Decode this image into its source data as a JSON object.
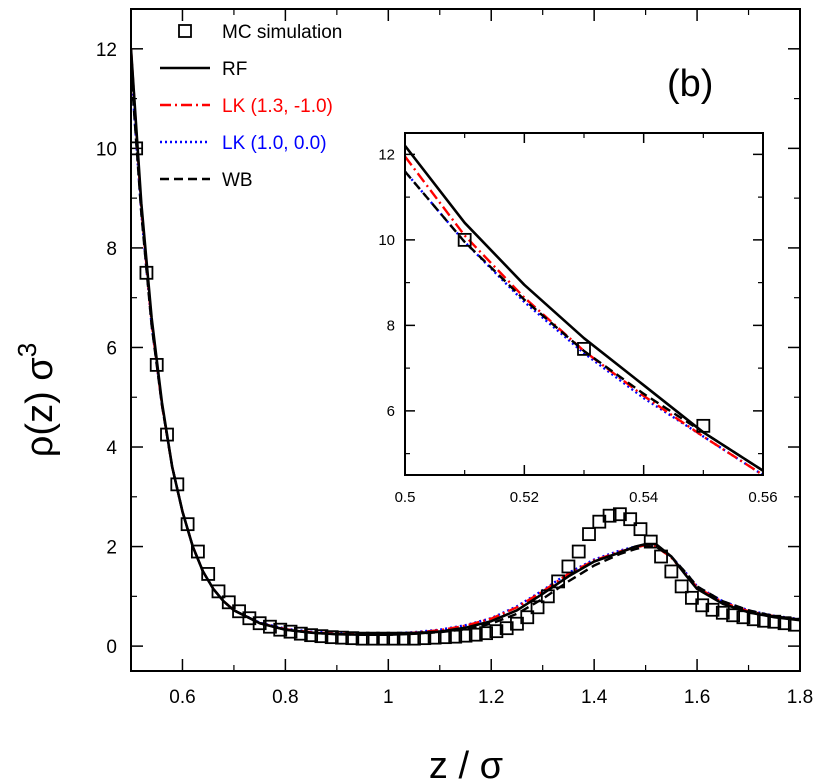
{
  "chart_data": {
    "type": "line",
    "panel_label": "(b)",
    "xlabel": "z / σ",
    "ylabel_base": "ρ(z) σ",
    "ylabel_sup": "3",
    "xlim": [
      0.5,
      1.8
    ],
    "ylim": [
      -0.5,
      12.8
    ],
    "xticks": [
      "0.6",
      "0.8",
      "1",
      "1.2",
      "1.4",
      "1.6",
      "1.8"
    ],
    "xtick_values": [
      0.6,
      0.8,
      1.0,
      1.2,
      1.4,
      1.6,
      1.8
    ],
    "yticks": [
      "0",
      "2",
      "4",
      "6",
      "8",
      "10",
      "12"
    ],
    "ytick_values": [
      0,
      2,
      4,
      6,
      8,
      10,
      12
    ],
    "legend": [
      {
        "key": "mc",
        "label": "MC simulation",
        "color": "#000000",
        "style": "square"
      },
      {
        "key": "rf",
        "label": "RF",
        "color": "#000000",
        "style": "solid"
      },
      {
        "key": "lk1",
        "label": "LK (1.3, -1.0)",
        "color": "#ff0000",
        "style": "dashdot"
      },
      {
        "key": "lk2",
        "label": "LK (1.0, 0.0)",
        "color": "#0000ff",
        "style": "dotted"
      },
      {
        "key": "wb",
        "label": "WB",
        "color": "#000000",
        "style": "dashed"
      }
    ],
    "series": [
      {
        "key": "mc",
        "name": "MC simulation",
        "type": "scatter",
        "x": [
          0.51,
          0.53,
          0.55,
          0.57,
          0.59,
          0.61,
          0.63,
          0.65,
          0.67,
          0.69,
          0.71,
          0.73,
          0.75,
          0.77,
          0.79,
          0.81,
          0.83,
          0.85,
          0.87,
          0.89,
          0.91,
          0.93,
          0.95,
          0.97,
          0.99,
          1.01,
          1.03,
          1.05,
          1.07,
          1.09,
          1.11,
          1.13,
          1.15,
          1.17,
          1.19,
          1.21,
          1.23,
          1.25,
          1.27,
          1.29,
          1.31,
          1.33,
          1.35,
          1.37,
          1.39,
          1.41,
          1.43,
          1.45,
          1.47,
          1.49,
          1.51,
          1.53,
          1.55,
          1.57,
          1.59,
          1.61,
          1.63,
          1.65,
          1.67,
          1.69,
          1.71,
          1.73,
          1.75,
          1.77,
          1.79
        ],
        "y": [
          10.0,
          7.5,
          5.65,
          4.25,
          3.25,
          2.45,
          1.9,
          1.45,
          1.1,
          0.88,
          0.7,
          0.56,
          0.46,
          0.39,
          0.33,
          0.29,
          0.25,
          0.22,
          0.2,
          0.18,
          0.17,
          0.16,
          0.15,
          0.15,
          0.15,
          0.15,
          0.15,
          0.15,
          0.16,
          0.17,
          0.18,
          0.19,
          0.21,
          0.23,
          0.26,
          0.3,
          0.36,
          0.45,
          0.58,
          0.78,
          1.0,
          1.3,
          1.6,
          1.9,
          2.25,
          2.5,
          2.62,
          2.65,
          2.55,
          2.35,
          2.1,
          1.8,
          1.5,
          1.2,
          0.97,
          0.82,
          0.73,
          0.67,
          0.62,
          0.58,
          0.54,
          0.51,
          0.49,
          0.46,
          0.43
        ]
      },
      {
        "key": "rf",
        "name": "RF",
        "type": "line",
        "x": [
          0.5,
          0.52,
          0.54,
          0.56,
          0.58,
          0.6,
          0.62,
          0.64,
          0.66,
          0.68,
          0.7,
          0.75,
          0.8,
          0.85,
          0.9,
          0.95,
          1.0,
          1.05,
          1.1,
          1.15,
          1.2,
          1.25,
          1.3,
          1.35,
          1.4,
          1.45,
          1.48,
          1.5,
          1.52,
          1.55,
          1.58,
          1.6,
          1.65,
          1.7,
          1.75,
          1.8
        ],
        "y": [
          12.0,
          8.9,
          6.6,
          4.9,
          3.6,
          2.7,
          2.0,
          1.5,
          1.15,
          0.9,
          0.72,
          0.46,
          0.33,
          0.27,
          0.24,
          0.23,
          0.23,
          0.25,
          0.29,
          0.37,
          0.5,
          0.72,
          1.05,
          1.4,
          1.7,
          1.88,
          2.0,
          2.05,
          2.05,
          1.8,
          1.4,
          1.15,
          0.85,
          0.68,
          0.58,
          0.52
        ]
      },
      {
        "key": "lk1",
        "name": "LK (1.3, -1.0)",
        "type": "line",
        "x": [
          0.5,
          0.52,
          0.54,
          0.56,
          0.58,
          0.6,
          0.62,
          0.64,
          0.66,
          0.68,
          0.7,
          0.75,
          0.8,
          0.85,
          0.9,
          0.95,
          1.0,
          1.05,
          1.1,
          1.15,
          1.2,
          1.25,
          1.3,
          1.35,
          1.4,
          1.45,
          1.48,
          1.5,
          1.52,
          1.55,
          1.58,
          1.6,
          1.65,
          1.7,
          1.75,
          1.8
        ],
        "y": [
          12.0,
          8.8,
          6.5,
          4.85,
          3.6,
          2.7,
          2.0,
          1.5,
          1.15,
          0.9,
          0.72,
          0.46,
          0.34,
          0.28,
          0.25,
          0.24,
          0.24,
          0.27,
          0.32,
          0.41,
          0.55,
          0.78,
          1.1,
          1.45,
          1.72,
          1.9,
          1.98,
          2.03,
          2.0,
          1.78,
          1.42,
          1.18,
          0.88,
          0.7,
          0.6,
          0.53
        ]
      },
      {
        "key": "lk2",
        "name": "LK (1.0, 0.0)",
        "type": "line",
        "x": [
          0.5,
          0.52,
          0.54,
          0.56,
          0.58,
          0.6,
          0.62,
          0.64,
          0.66,
          0.68,
          0.7,
          0.75,
          0.8,
          0.85,
          0.9,
          0.95,
          1.0,
          1.05,
          1.1,
          1.15,
          1.2,
          1.25,
          1.3,
          1.35,
          1.4,
          1.45,
          1.48,
          1.5,
          1.52,
          1.55,
          1.58,
          1.6,
          1.65,
          1.7,
          1.75,
          1.8
        ],
        "y": [
          11.6,
          8.7,
          6.45,
          4.85,
          3.6,
          2.7,
          2.0,
          1.5,
          1.15,
          0.9,
          0.72,
          0.47,
          0.35,
          0.29,
          0.26,
          0.25,
          0.25,
          0.28,
          0.33,
          0.42,
          0.56,
          0.8,
          1.12,
          1.47,
          1.74,
          1.92,
          2.0,
          2.04,
          2.0,
          1.8,
          1.45,
          1.2,
          0.9,
          0.72,
          0.61,
          0.54
        ]
      },
      {
        "key": "wb",
        "name": "WB",
        "type": "line",
        "x": [
          0.5,
          0.52,
          0.54,
          0.56,
          0.58,
          0.6,
          0.62,
          0.64,
          0.66,
          0.68,
          0.7,
          0.75,
          0.8,
          0.85,
          0.9,
          0.95,
          1.0,
          1.05,
          1.1,
          1.15,
          1.2,
          1.25,
          1.3,
          1.35,
          1.4,
          1.45,
          1.48,
          1.5,
          1.52,
          1.55,
          1.58,
          1.6,
          1.65,
          1.7,
          1.75,
          1.8
        ],
        "y": [
          11.6,
          8.7,
          6.45,
          4.85,
          3.6,
          2.7,
          2.0,
          1.5,
          1.15,
          0.9,
          0.72,
          0.46,
          0.33,
          0.27,
          0.24,
          0.23,
          0.23,
          0.25,
          0.28,
          0.34,
          0.45,
          0.65,
          0.95,
          1.3,
          1.62,
          1.85,
          1.95,
          2.0,
          2.0,
          1.8,
          1.45,
          1.2,
          0.9,
          0.72,
          0.6,
          0.53
        ]
      }
    ],
    "inset": {
      "xlim": [
        0.5,
        0.56
      ],
      "ylim": [
        4.5,
        12.5
      ],
      "xticks": [
        "0.5",
        "0.52",
        "0.54",
        "0.56"
      ],
      "xtick_values": [
        0.5,
        0.52,
        0.54,
        0.56
      ],
      "yticks": [
        "6",
        "8",
        "10",
        "12"
      ],
      "ytick_values": [
        6,
        8,
        10,
        12
      ],
      "series": [
        {
          "key": "mc",
          "type": "scatter",
          "x": [
            0.51,
            0.53,
            0.55
          ],
          "y": [
            10.0,
            7.45,
            5.65
          ]
        },
        {
          "key": "rf",
          "type": "line",
          "x": [
            0.5,
            0.51,
            0.52,
            0.53,
            0.54,
            0.55,
            0.56
          ],
          "y": [
            12.2,
            10.4,
            8.95,
            7.7,
            6.6,
            5.5,
            4.6
          ]
        },
        {
          "key": "lk1",
          "type": "line",
          "x": [
            0.5,
            0.51,
            0.52,
            0.53,
            0.54,
            0.55,
            0.56
          ],
          "y": [
            11.95,
            10.1,
            8.65,
            7.4,
            6.35,
            5.4,
            4.5
          ]
        },
        {
          "key": "lk2",
          "type": "line",
          "x": [
            0.5,
            0.51,
            0.52,
            0.53,
            0.54,
            0.55,
            0.56
          ],
          "y": [
            11.6,
            9.95,
            8.55,
            7.35,
            6.3,
            5.4,
            4.5
          ]
        },
        {
          "key": "wb",
          "type": "line",
          "x": [
            0.5,
            0.51,
            0.52,
            0.53,
            0.54,
            0.55,
            0.56
          ],
          "y": [
            11.6,
            9.95,
            8.6,
            7.4,
            6.4,
            5.5,
            4.6
          ]
        }
      ]
    }
  }
}
